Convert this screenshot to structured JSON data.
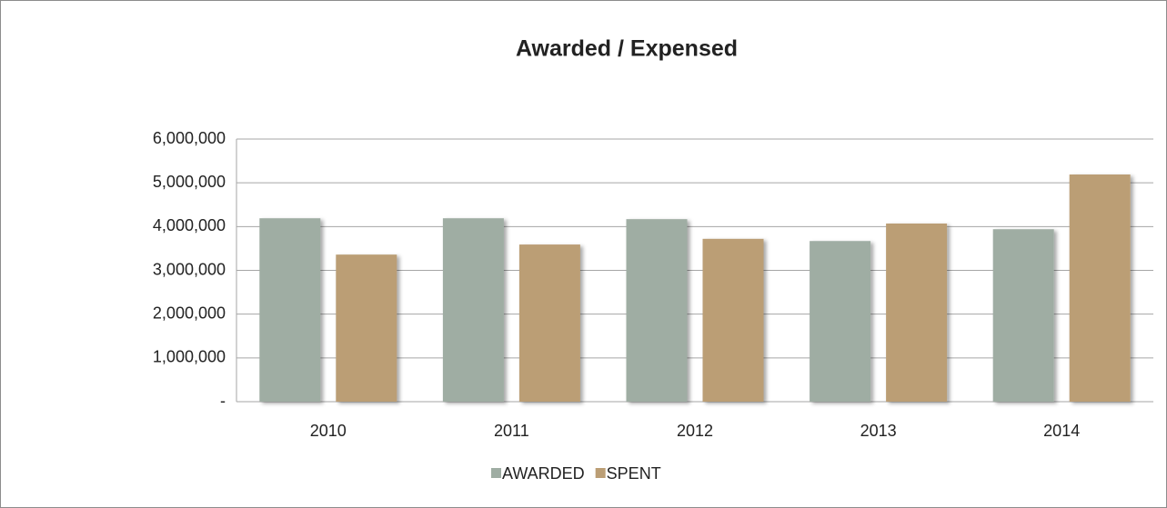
{
  "chart_data": {
    "type": "bar",
    "title": "Awarded / Expensed",
    "categories": [
      "2010",
      "2011",
      "2012",
      "2013",
      "2014"
    ],
    "series": [
      {
        "name": "AWARDED",
        "color": "#9fada3",
        "values": [
          4190000,
          4190000,
          4170000,
          3670000,
          3940000
        ]
      },
      {
        "name": "SPENT",
        "color": "#bb9e75",
        "values": [
          3360000,
          3590000,
          3720000,
          4070000,
          5190000
        ]
      }
    ],
    "ylim": [
      0,
      6000000
    ],
    "yticks": [
      {
        "value": 0,
        "label": "-"
      },
      {
        "value": 1000000,
        "label": "1,000,000"
      },
      {
        "value": 2000000,
        "label": "2,000,000"
      },
      {
        "value": 3000000,
        "label": "3,000,000"
      },
      {
        "value": 4000000,
        "label": "4,000,000"
      },
      {
        "value": 5000000,
        "label": "5,000,000"
      },
      {
        "value": 6000000,
        "label": "6,000,000"
      }
    ],
    "grid": true,
    "legend": "bottom"
  }
}
